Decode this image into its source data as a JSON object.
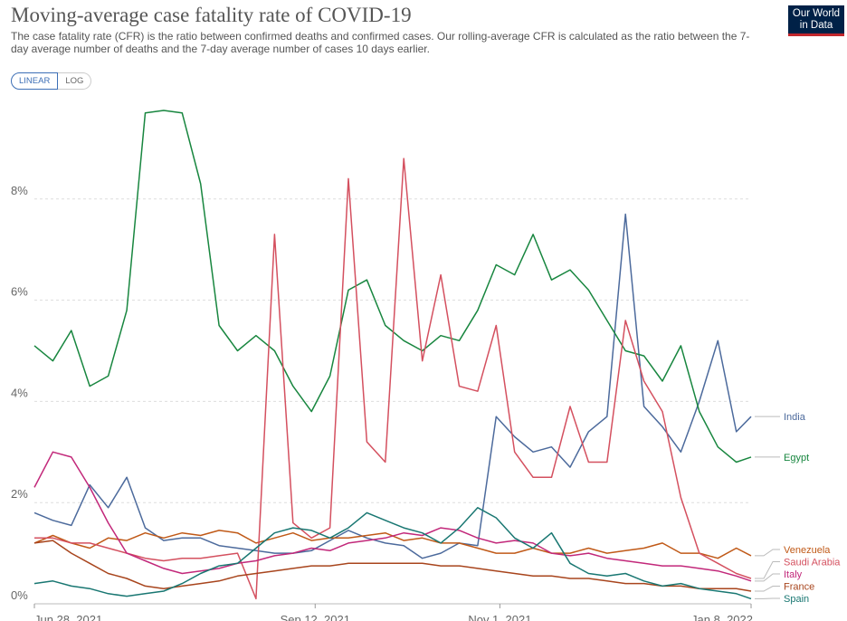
{
  "header": {
    "title": "Moving-average case fatality rate of COVID-19",
    "subtitle": "The case fatality rate (CFR) is the ratio between confirmed deaths and confirmed cases. Our rolling-average CFR is calculated as the ratio between the 7-day average number of deaths and the 7-day average number of cases 10 days earlier.",
    "logo_line1": "Our World",
    "logo_line2": "in Data"
  },
  "controls": {
    "linear_label": "LINEAR",
    "log_label": "LOG"
  },
  "chart_data": {
    "type": "line",
    "title": "Moving-average case fatality rate of COVID-19",
    "subtitle": "The case fatality rate (CFR) is the ratio between confirmed deaths and confirmed cases. Our rolling-average CFR is calculated as the ratio between the 7-day average number of deaths and the 7-day average number of cases 10 days earlier.",
    "x_range": [
      "2021-06-28",
      "2022-01-08"
    ],
    "x_ticks": [
      "Jun 28, 2021",
      "Sep 12, 2021",
      "Nov 1, 2021",
      "Jan 8, 2022"
    ],
    "ylim": [
      0,
      10
    ],
    "y_ticks": [
      "0%",
      "2%",
      "4%",
      "6%",
      "8%"
    ],
    "y_unit": "%",
    "grid": true,
    "legend_placement": "right, labels at line ends",
    "x": [
      "2021-06-28",
      "2021-07-03",
      "2021-07-08",
      "2021-07-13",
      "2021-07-18",
      "2021-07-23",
      "2021-07-28",
      "2021-08-02",
      "2021-08-07",
      "2021-08-12",
      "2021-08-17",
      "2021-08-22",
      "2021-08-27",
      "2021-09-01",
      "2021-09-06",
      "2021-09-11",
      "2021-09-16",
      "2021-09-21",
      "2021-09-26",
      "2021-10-01",
      "2021-10-06",
      "2021-10-11",
      "2021-10-16",
      "2021-10-21",
      "2021-10-26",
      "2021-10-31",
      "2021-11-05",
      "2021-11-10",
      "2021-11-15",
      "2021-11-20",
      "2021-11-25",
      "2021-11-30",
      "2021-12-05",
      "2021-12-10",
      "2021-12-15",
      "2021-12-20",
      "2021-12-25",
      "2021-12-30",
      "2022-01-04",
      "2022-01-08"
    ],
    "series": [
      {
        "name": "India",
        "color": "#4c6a9c",
        "values": [
          1.8,
          1.65,
          1.55,
          2.35,
          1.9,
          2.5,
          1.5,
          1.25,
          1.3,
          1.3,
          1.15,
          1.1,
          1.05,
          1.0,
          1.0,
          1.05,
          1.25,
          1.45,
          1.3,
          1.2,
          1.15,
          0.9,
          1.0,
          1.2,
          1.15,
          3.7,
          3.3,
          3.0,
          3.1,
          2.7,
          3.4,
          3.7,
          7.7,
          3.9,
          3.5,
          3.0,
          4.0,
          5.2,
          3.4,
          3.7
        ]
      },
      {
        "name": "Egypt",
        "color": "#18863f",
        "values": [
          5.1,
          4.8,
          5.4,
          4.3,
          4.5,
          5.8,
          9.7,
          9.75,
          9.7,
          8.3,
          5.5,
          5.0,
          5.3,
          5.0,
          4.3,
          3.8,
          4.5,
          6.2,
          6.4,
          5.5,
          5.2,
          5.0,
          5.3,
          5.2,
          5.8,
          6.7,
          6.5,
          7.3,
          6.4,
          6.6,
          6.2,
          5.6,
          5.0,
          4.9,
          4.4,
          5.1,
          3.8,
          3.1,
          2.8,
          2.9
        ]
      },
      {
        "name": "Venezuela",
        "color": "#c05917",
        "values": [
          1.2,
          1.35,
          1.2,
          1.1,
          1.3,
          1.25,
          1.4,
          1.3,
          1.4,
          1.35,
          1.45,
          1.4,
          1.2,
          1.3,
          1.4,
          1.25,
          1.3,
          1.3,
          1.35,
          1.4,
          1.25,
          1.3,
          1.2,
          1.2,
          1.1,
          1.0,
          1.0,
          1.1,
          1.0,
          1.0,
          1.1,
          1.0,
          1.05,
          1.1,
          1.2,
          1.0,
          1.0,
          0.9,
          1.1,
          0.95
        ]
      },
      {
        "name": "Saudi Arabia",
        "color": "#d4505f",
        "values": [
          1.3,
          1.3,
          1.2,
          1.2,
          1.1,
          1.0,
          0.9,
          0.85,
          0.9,
          0.9,
          0.95,
          1.0,
          0.1,
          7.3,
          1.6,
          1.3,
          1.5,
          8.4,
          3.2,
          2.8,
          8.8,
          4.8,
          6.5,
          4.3,
          4.2,
          5.5,
          3.0,
          2.5,
          2.5,
          3.9,
          2.8,
          2.8,
          5.6,
          4.4,
          3.8,
          2.1,
          1.0,
          0.8,
          0.6,
          0.5
        ]
      },
      {
        "name": "Italy",
        "color": "#c2287a",
        "values": [
          2.3,
          3.0,
          2.9,
          2.3,
          1.6,
          1.0,
          0.85,
          0.7,
          0.6,
          0.65,
          0.7,
          0.8,
          0.85,
          0.95,
          1.0,
          1.1,
          1.05,
          1.2,
          1.25,
          1.3,
          1.4,
          1.35,
          1.5,
          1.45,
          1.3,
          1.2,
          1.25,
          1.2,
          1.0,
          0.95,
          1.0,
          0.9,
          0.85,
          0.8,
          0.75,
          0.75,
          0.7,
          0.65,
          0.55,
          0.45
        ]
      },
      {
        "name": "France",
        "color": "#a8451d",
        "values": [
          1.2,
          1.25,
          1.0,
          0.8,
          0.6,
          0.5,
          0.35,
          0.3,
          0.35,
          0.4,
          0.45,
          0.55,
          0.6,
          0.65,
          0.7,
          0.75,
          0.75,
          0.8,
          0.8,
          0.8,
          0.8,
          0.8,
          0.75,
          0.75,
          0.7,
          0.65,
          0.6,
          0.55,
          0.55,
          0.5,
          0.5,
          0.45,
          0.4,
          0.4,
          0.35,
          0.35,
          0.3,
          0.3,
          0.3,
          0.25
        ]
      },
      {
        "name": "Spain",
        "color": "#197772",
        "values": [
          0.4,
          0.45,
          0.35,
          0.3,
          0.2,
          0.15,
          0.2,
          0.25,
          0.4,
          0.6,
          0.75,
          0.8,
          1.1,
          1.4,
          1.5,
          1.45,
          1.3,
          1.5,
          1.8,
          1.65,
          1.5,
          1.4,
          1.2,
          1.5,
          1.9,
          1.7,
          1.3,
          1.1,
          1.4,
          0.8,
          0.6,
          0.55,
          0.6,
          0.45,
          0.35,
          0.4,
          0.3,
          0.25,
          0.2,
          0.1
        ]
      }
    ]
  }
}
